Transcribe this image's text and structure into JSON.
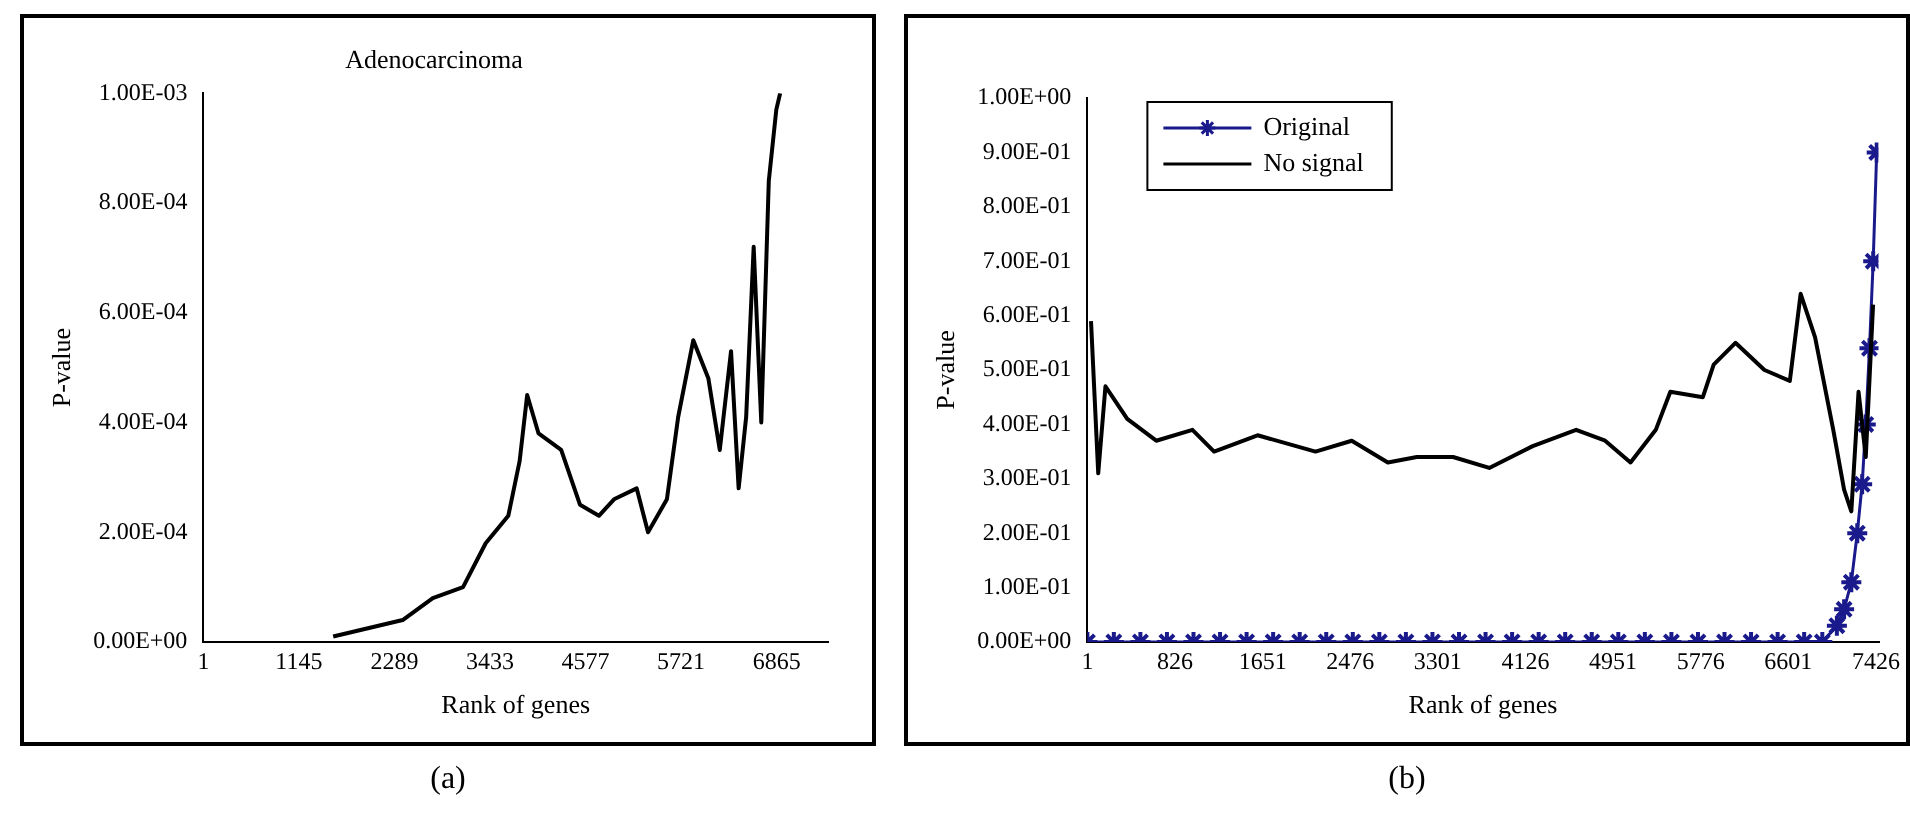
{
  "chart_data": [
    {
      "type": "line",
      "title": "Adenocarcinoma",
      "xlabel": "Rank of genes",
      "ylabel": "P-value",
      "annotations": [
        "(a)"
      ],
      "xlim": [
        1,
        7480
      ],
      "xticks": [
        1,
        1145,
        2289,
        3433,
        4577,
        5721,
        6865
      ],
      "ylim": [
        0,
        0.001
      ],
      "yticks": [
        {
          "value": 0,
          "label": "0.00E+00"
        },
        {
          "value": 0.0002,
          "label": "2.00E-04"
        },
        {
          "value": 0.0004,
          "label": "4.00E-04"
        },
        {
          "value": 0.0006,
          "label": "6.00E-04"
        },
        {
          "value": 0.0008,
          "label": "8.00E-04"
        },
        {
          "value": 0.001,
          "label": "1.00E-03"
        }
      ],
      "grid": false,
      "legend": false,
      "marker": "none",
      "series": [
        {
          "color": "#000000",
          "x": [
            1555,
            2387,
            2748,
            3110,
            3381,
            3652,
            3788,
            3878,
            4014,
            4285,
            4511,
            4737,
            4918,
            5189,
            5325,
            5551,
            5686,
            5867,
            6048,
            6184,
            6319,
            6410,
            6500,
            6590,
            6681,
            6771,
            6861,
            6907
          ],
          "values": [
            1e-05,
            4e-05,
            8e-05,
            0.0001,
            0.00018,
            0.00023,
            0.00033,
            0.00045,
            0.00038,
            0.00035,
            0.00025,
            0.00023,
            0.00026,
            0.00028,
            0.0002,
            0.00026,
            0.00041,
            0.00055,
            0.00048,
            0.00035,
            0.00053,
            0.00028,
            0.00041,
            0.00072,
            0.0004,
            0.00084,
            0.00097,
            0.001
          ]
        }
      ]
    },
    {
      "type": "line",
      "xlabel": "Rank of genes",
      "ylabel": "P-value",
      "annotations": [
        "(b)"
      ],
      "xlim": [
        1,
        7450
      ],
      "xticks": [
        1,
        826,
        1651,
        2476,
        3301,
        4126,
        4951,
        5776,
        6601,
        7426
      ],
      "ylim": [
        0,
        1
      ],
      "yticks": [
        {
          "value": 0,
          "label": "0.00E+00"
        },
        {
          "value": 0.1,
          "label": "1.00E-01"
        },
        {
          "value": 0.2,
          "label": "2.00E-01"
        },
        {
          "value": 0.3,
          "label": "3.00E-01"
        },
        {
          "value": 0.4,
          "label": "4.00E-01"
        },
        {
          "value": 0.5,
          "label": "5.00E-01"
        },
        {
          "value": 0.6,
          "label": "6.00E-01"
        },
        {
          "value": 0.7,
          "label": "7.00E-01"
        },
        {
          "value": 0.8,
          "label": "8.00E-01"
        },
        {
          "value": 0.9,
          "label": "9.00E-01"
        },
        {
          "value": 1,
          "label": "1.00E+00"
        }
      ],
      "grid": false,
      "legend": "top left",
      "series": [
        {
          "name": "Original",
          "color": "#1a1a8c",
          "marker": "cross",
          "x": [
            1,
            250,
            500,
            750,
            1000,
            1250,
            1500,
            1750,
            2000,
            2250,
            2500,
            2750,
            3000,
            3250,
            3500,
            3750,
            4000,
            4250,
            4500,
            4750,
            5000,
            5250,
            5500,
            5750,
            6000,
            6250,
            6500,
            6750,
            6921,
            7058,
            7126,
            7194,
            7250,
            7296,
            7330,
            7365,
            7400,
            7433
          ],
          "values": [
            0,
            0,
            0,
            0,
            0,
            0,
            0,
            0,
            0,
            0,
            0,
            0,
            0,
            0,
            0,
            0,
            0,
            0,
            0,
            0,
            0,
            0,
            0,
            0,
            0,
            0,
            0,
            0,
            0,
            0.03,
            0.06,
            0.11,
            0.2,
            0.29,
            0.4,
            0.54,
            0.7,
            0.9
          ]
        },
        {
          "name": "No signal",
          "color": "#000000",
          "marker": "none",
          "x": [
            35,
            103,
            171,
            376,
            649,
            990,
            1194,
            1603,
            2149,
            2490,
            2830,
            3103,
            3444,
            3785,
            4194,
            4603,
            4876,
            5115,
            5353,
            5490,
            5796,
            5898,
            6103,
            6376,
            6615,
            6717,
            6853,
            7024,
            7126,
            7194,
            7262,
            7330,
            7399
          ],
          "values": [
            0.59,
            0.31,
            0.47,
            0.41,
            0.37,
            0.39,
            0.35,
            0.38,
            0.35,
            0.37,
            0.33,
            0.34,
            0.34,
            0.32,
            0.36,
            0.39,
            0.37,
            0.33,
            0.39,
            0.46,
            0.45,
            0.51,
            0.55,
            0.5,
            0.48,
            0.64,
            0.56,
            0.39,
            0.28,
            0.24,
            0.46,
            0.34,
            0.62
          ]
        }
      ]
    }
  ]
}
